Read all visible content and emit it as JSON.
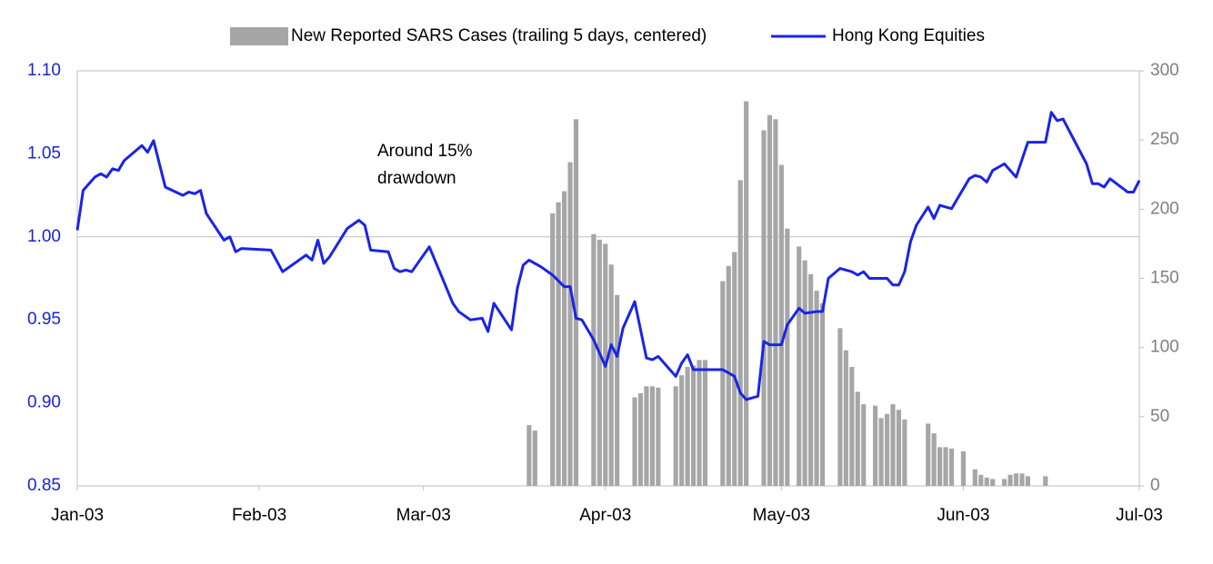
{
  "chart_data": {
    "type": "bar-line",
    "xlim": [
      0,
      181
    ],
    "xticks": [
      {
        "value": 0,
        "label": "Jan-03"
      },
      {
        "value": 31,
        "label": "Feb-03"
      },
      {
        "value": 59,
        "label": "Mar-03"
      },
      {
        "value": 90,
        "label": "Apr-03"
      },
      {
        "value": 120,
        "label": "May-03"
      },
      {
        "value": 151,
        "label": "Jun-03"
      },
      {
        "value": 181,
        "label": "Jul-03"
      }
    ],
    "ylim": [
      0.85,
      1.1
    ],
    "yticks": [
      {
        "value": 0.85,
        "label": "0.85"
      },
      {
        "value": 0.9,
        "label": "0.90"
      },
      {
        "value": 0.95,
        "label": "0.95"
      },
      {
        "value": 1.0,
        "label": "1.00"
      },
      {
        "value": 1.05,
        "label": "1.05"
      },
      {
        "value": 1.1,
        "label": "1.10"
      }
    ],
    "y2lim": [
      0,
      300
    ],
    "y2ticks": [
      0,
      50,
      100,
      150,
      200,
      250,
      300
    ],
    "reference_line": 1.0,
    "legend": "top",
    "annotation": [
      "Around 15%",
      "drawdown"
    ],
    "series": [
      {
        "name": "New Reported SARS Cases (trailing 5 days, centered)",
        "type": "bar",
        "axis": "y2",
        "color": "#a6a6a6",
        "x": [
          77,
          78,
          81,
          82,
          83,
          84,
          85,
          88,
          89,
          90,
          91,
          92,
          95,
          96,
          97,
          98,
          99,
          102,
          103,
          104,
          105,
          106,
          107,
          110,
          111,
          112,
          113,
          114,
          117,
          118,
          119,
          120,
          121,
          123,
          124,
          125,
          126,
          127,
          130,
          131,
          132,
          133,
          134,
          136,
          137,
          138,
          139,
          140,
          141,
          145,
          146,
          147,
          148,
          149,
          151,
          153,
          154,
          155,
          156,
          158,
          159,
          160,
          161,
          162,
          165
        ],
        "values": [
          44,
          40,
          197,
          205,
          213,
          234,
          265,
          182,
          178,
          175,
          160,
          138,
          64,
          67,
          72,
          72,
          71,
          72,
          80,
          86,
          87,
          91,
          91,
          148,
          159,
          169,
          221,
          278,
          257,
          268,
          265,
          232,
          186,
          173,
          163,
          153,
          141,
          132,
          114,
          98,
          86,
          68,
          59,
          58,
          49,
          52,
          59,
          55,
          48,
          45,
          38,
          28,
          28,
          27,
          25,
          12,
          8,
          6,
          5,
          5,
          8,
          9,
          9,
          7,
          7
        ]
      },
      {
        "name": "Hong Kong Equities",
        "type": "line",
        "color": "#1a24e6",
        "x": [
          0,
          1,
          2,
          3,
          4,
          5,
          6,
          7,
          8,
          10,
          11,
          12,
          13,
          15,
          18,
          19,
          20,
          21,
          22,
          25,
          26,
          27,
          28,
          33,
          35,
          39,
          40,
          41,
          42,
          43,
          46,
          48,
          49,
          50,
          53,
          54,
          55,
          56,
          57,
          60,
          62,
          64,
          65,
          67,
          69,
          70,
          71,
          74,
          75,
          76,
          77,
          79,
          81,
          83,
          84,
          85,
          86,
          88,
          90,
          91,
          92,
          93,
          95,
          97,
          98,
          99,
          102,
          103,
          104,
          105,
          110,
          112,
          113,
          114,
          116,
          117,
          118,
          120,
          121,
          123,
          124,
          126,
          127,
          128,
          130,
          132,
          133,
          134,
          135,
          138,
          139,
          140,
          141,
          142,
          143,
          145,
          146,
          147,
          148,
          149,
          152,
          153,
          154,
          155,
          156,
          158,
          160,
          162,
          165,
          166,
          167,
          168,
          172,
          173,
          174,
          175,
          176,
          179,
          180,
          181
        ],
        "values": [
          1.004,
          1.028,
          1.032,
          1.036,
          1.038,
          1.036,
          1.041,
          1.04,
          1.046,
          1.052,
          1.055,
          1.051,
          1.058,
          1.03,
          1.025,
          1.027,
          1.026,
          1.028,
          1.014,
          0.998,
          1.0,
          0.991,
          0.993,
          0.992,
          0.979,
          0.989,
          0.986,
          0.998,
          0.984,
          0.988,
          1.005,
          1.01,
          1.007,
          0.992,
          0.991,
          0.981,
          0.979,
          0.98,
          0.979,
          0.994,
          0.977,
          0.96,
          0.955,
          0.95,
          0.951,
          0.943,
          0.96,
          0.944,
          0.969,
          0.983,
          0.986,
          0.982,
          0.977,
          0.97,
          0.97,
          0.951,
          0.95,
          0.938,
          0.922,
          0.935,
          0.928,
          0.945,
          0.961,
          0.927,
          0.926,
          0.928,
          0.916,
          0.924,
          0.929,
          0.92,
          0.92,
          0.916,
          0.906,
          0.902,
          0.904,
          0.937,
          0.935,
          0.935,
          0.947,
          0.957,
          0.954,
          0.955,
          0.955,
          0.975,
          0.981,
          0.979,
          0.977,
          0.979,
          0.975,
          0.975,
          0.971,
          0.971,
          0.979,
          0.997,
          1.007,
          1.018,
          1.011,
          1.019,
          1.018,
          1.017,
          1.035,
          1.037,
          1.036,
          1.033,
          1.04,
          1.044,
          1.036,
          1.057,
          1.057,
          1.075,
          1.07,
          1.071,
          1.044,
          1.032,
          1.032,
          1.03,
          1.035,
          1.027,
          1.027,
          1.034
        ]
      }
    ]
  }
}
